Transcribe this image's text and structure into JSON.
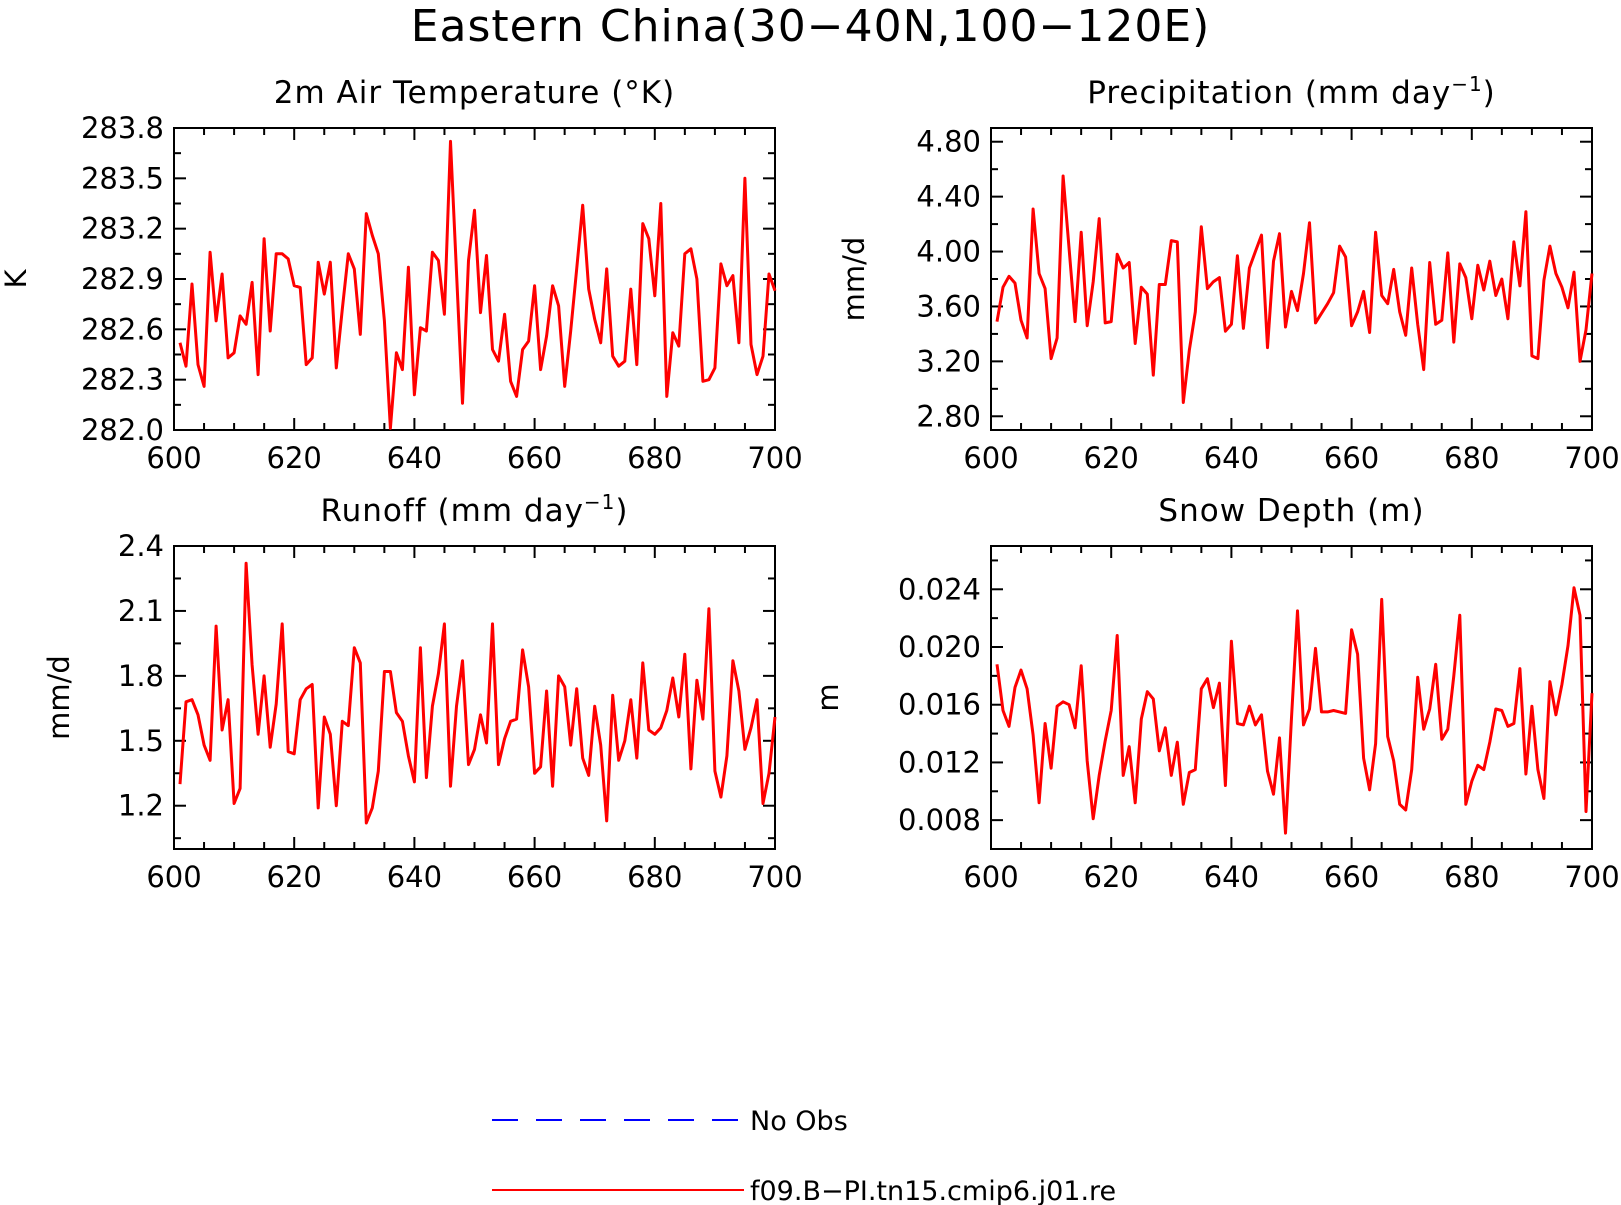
{
  "title": "Eastern China(30−40N,100−120E)",
  "colors": {
    "model": "#ff0000",
    "obs": "#0000ff",
    "axes": "#000000"
  },
  "chart_data": [
    {
      "type": "line",
      "title": "2m Air Temperature (°K)",
      "ylabel": "K",
      "xlim": [
        600,
        700
      ],
      "ylim": [
        282.0,
        283.8
      ],
      "xticks": [
        600,
        620,
        640,
        660,
        680,
        700
      ],
      "xtick_labels": [
        "600",
        "620",
        "640",
        "660",
        "680",
        "700"
      ],
      "yticks": [
        282.0,
        282.3,
        282.6,
        282.9,
        283.2,
        283.5,
        283.8
      ],
      "ytick_labels": [
        "282.0",
        "282.3",
        "282.6",
        "282.9",
        "283.2",
        "283.5",
        "283.8"
      ],
      "series": [
        {
          "name": "f09.B−PI.tn15.cmip6.j01.re",
          "x_start": 601,
          "x_step": 1,
          "values": [
            282.52,
            282.38,
            282.87,
            282.39,
            282.26,
            283.06,
            282.65,
            282.93,
            282.43,
            282.46,
            282.68,
            282.63,
            282.88,
            282.33,
            283.14,
            282.59,
            283.05,
            283.05,
            283.02,
            282.86,
            282.85,
            282.39,
            282.43,
            283.0,
            282.81,
            283.0,
            282.37,
            282.72,
            283.05,
            282.96,
            282.57,
            283.29,
            283.16,
            283.05,
            282.65,
            282.01,
            282.46,
            282.36,
            282.97,
            282.21,
            282.61,
            282.59,
            283.06,
            283.01,
            282.69,
            283.72,
            282.94,
            282.16,
            283.01,
            283.31,
            282.7,
            283.04,
            282.48,
            282.41,
            282.69,
            282.29,
            282.2,
            282.48,
            282.53,
            282.86,
            282.36,
            282.56,
            282.86,
            282.74,
            282.26,
            282.59,
            282.96,
            283.34,
            282.84,
            282.66,
            282.52,
            282.96,
            282.44,
            282.38,
            282.41,
            282.84,
            282.39,
            283.23,
            283.14,
            282.8,
            283.35,
            282.2,
            282.58,
            282.5,
            283.05,
            283.08,
            282.9,
            282.29,
            282.3,
            282.37,
            282.99,
            282.86,
            282.92,
            282.52,
            283.5,
            282.51,
            282.33,
            282.44,
            282.93,
            282.83
          ]
        }
      ]
    },
    {
      "type": "line",
      "title": "Precipitation (mm day",
      "title_sup": "−1",
      "title_end": ")",
      "ylabel": "mm/d",
      "xlim": [
        600,
        700
      ],
      "ylim": [
        2.7,
        4.9
      ],
      "xticks": [
        600,
        620,
        640,
        660,
        680,
        700
      ],
      "xtick_labels": [
        "600",
        "620",
        "640",
        "660",
        "680",
        "700"
      ],
      "yticks": [
        2.8,
        3.2,
        3.6,
        4.0,
        4.4,
        4.8
      ],
      "ytick_labels": [
        "2.80",
        "3.20",
        "3.60",
        "4.00",
        "4.40",
        "4.80"
      ],
      "series": [
        {
          "name": "f09.B−PI.tn15.cmip6.j01.re",
          "x_start": 601,
          "x_step": 1,
          "values": [
            3.49,
            3.74,
            3.82,
            3.77,
            3.5,
            3.37,
            4.31,
            3.84,
            3.73,
            3.22,
            3.37,
            4.55,
            4.02,
            3.49,
            4.14,
            3.46,
            3.78,
            4.24,
            3.48,
            3.49,
            3.98,
            3.88,
            3.92,
            3.33,
            3.74,
            3.69,
            3.1,
            3.76,
            3.76,
            4.08,
            4.07,
            2.9,
            3.28,
            3.56,
            4.18,
            3.73,
            3.78,
            3.81,
            3.42,
            3.47,
            3.97,
            3.44,
            3.88,
            4.0,
            4.12,
            3.3,
            3.93,
            4.13,
            3.45,
            3.71,
            3.57,
            3.84,
            4.21,
            3.48,
            3.55,
            3.62,
            3.7,
            4.04,
            3.96,
            3.46,
            3.56,
            3.71,
            3.41,
            4.14,
            3.68,
            3.62,
            3.87,
            3.56,
            3.39,
            3.88,
            3.47,
            3.14,
            3.92,
            3.47,
            3.5,
            3.99,
            3.34,
            3.91,
            3.81,
            3.51,
            3.9,
            3.72,
            3.93,
            3.68,
            3.8,
            3.51,
            4.07,
            3.75,
            4.29,
            3.24,
            3.22,
            3.79,
            4.04,
            3.84,
            3.74,
            3.59,
            3.85,
            3.2,
            3.43,
            3.84
          ]
        }
      ]
    },
    {
      "type": "line",
      "title": "Runoff (mm day",
      "title_sup": "−1",
      "title_end": ")",
      "ylabel": "mm/d",
      "xlim": [
        600,
        700
      ],
      "ylim": [
        1.0,
        2.4
      ],
      "xticks": [
        600,
        620,
        640,
        660,
        680,
        700
      ],
      "xtick_labels": [
        "600",
        "620",
        "640",
        "660",
        "680",
        "700"
      ],
      "yticks": [
        1.2,
        1.5,
        1.8,
        2.1,
        2.4
      ],
      "ytick_labels": [
        "1.2",
        "1.5",
        "1.8",
        "2.1",
        "2.4"
      ],
      "series": [
        {
          "name": "f09.B−PI.tn15.cmip6.j01.re",
          "x_start": 601,
          "x_step": 1,
          "values": [
            1.3,
            1.68,
            1.69,
            1.62,
            1.48,
            1.41,
            2.03,
            1.55,
            1.69,
            1.21,
            1.28,
            2.32,
            1.85,
            1.53,
            1.8,
            1.47,
            1.67,
            2.04,
            1.45,
            1.44,
            1.69,
            1.74,
            1.76,
            1.19,
            1.61,
            1.53,
            1.2,
            1.59,
            1.57,
            1.93,
            1.86,
            1.12,
            1.19,
            1.36,
            1.82,
            1.82,
            1.63,
            1.59,
            1.43,
            1.31,
            1.93,
            1.33,
            1.66,
            1.81,
            2.04,
            1.29,
            1.66,
            1.87,
            1.39,
            1.46,
            1.62,
            1.49,
            2.04,
            1.39,
            1.51,
            1.59,
            1.6,
            1.92,
            1.75,
            1.35,
            1.38,
            1.73,
            1.29,
            1.8,
            1.75,
            1.48,
            1.74,
            1.42,
            1.34,
            1.66,
            1.48,
            1.13,
            1.71,
            1.41,
            1.5,
            1.69,
            1.42,
            1.86,
            1.55,
            1.53,
            1.56,
            1.64,
            1.79,
            1.61,
            1.9,
            1.37,
            1.78,
            1.6,
            2.11,
            1.36,
            1.24,
            1.43,
            1.87,
            1.73,
            1.46,
            1.56,
            1.69,
            1.21,
            1.35,
            1.61
          ]
        }
      ]
    },
    {
      "type": "line",
      "title": "Snow Depth (m)",
      "ylabel": "m",
      "xlim": [
        600,
        700
      ],
      "ylim": [
        0.006,
        0.027
      ],
      "xticks": [
        600,
        620,
        640,
        660,
        680,
        700
      ],
      "xtick_labels": [
        "600",
        "620",
        "640",
        "660",
        "680",
        "700"
      ],
      "yticks": [
        0.008,
        0.012,
        0.016,
        0.02,
        0.024
      ],
      "ytick_labels": [
        "0.008",
        "0.012",
        "0.016",
        "0.020",
        "0.024"
      ],
      "series": [
        {
          "name": "f09.B−PI.tn15.cmip6.j01.re",
          "x_start": 601,
          "x_step": 1,
          "values": [
            0.0188,
            0.0156,
            0.0145,
            0.0172,
            0.0184,
            0.0171,
            0.0139,
            0.0092,
            0.0147,
            0.0116,
            0.0159,
            0.0162,
            0.016,
            0.0144,
            0.0187,
            0.0121,
            0.0081,
            0.0111,
            0.0135,
            0.0156,
            0.0208,
            0.0111,
            0.0131,
            0.0092,
            0.015,
            0.0169,
            0.0164,
            0.0128,
            0.0144,
            0.0111,
            0.0134,
            0.0091,
            0.0113,
            0.0115,
            0.0171,
            0.0178,
            0.0158,
            0.0175,
            0.0104,
            0.0204,
            0.0147,
            0.0146,
            0.0159,
            0.0146,
            0.0153,
            0.0114,
            0.0098,
            0.0137,
            0.0071,
            0.0151,
            0.0225,
            0.0146,
            0.0157,
            0.0199,
            0.0155,
            0.0155,
            0.0156,
            0.0155,
            0.0154,
            0.0212,
            0.0195,
            0.0123,
            0.0101,
            0.0133,
            0.0233,
            0.0138,
            0.0121,
            0.0091,
            0.0087,
            0.0115,
            0.0179,
            0.0143,
            0.0157,
            0.0188,
            0.0136,
            0.0143,
            0.018,
            0.0222,
            0.0091,
            0.0107,
            0.0118,
            0.0115,
            0.0134,
            0.0157,
            0.0156,
            0.0145,
            0.0147,
            0.0185,
            0.0112,
            0.0159,
            0.0115,
            0.0095,
            0.0176,
            0.0153,
            0.0174,
            0.0201,
            0.0241,
            0.0222,
            0.0086,
            0.0168
          ]
        }
      ]
    }
  ],
  "legend": {
    "placement": "bottom-center",
    "entries": [
      {
        "label": "No Obs",
        "style": "dashed",
        "color": "#0000ff"
      },
      {
        "label": "f09.B−PI.tn15.cmip6.j01.re",
        "style": "solid",
        "color": "#ff0000"
      }
    ]
  }
}
